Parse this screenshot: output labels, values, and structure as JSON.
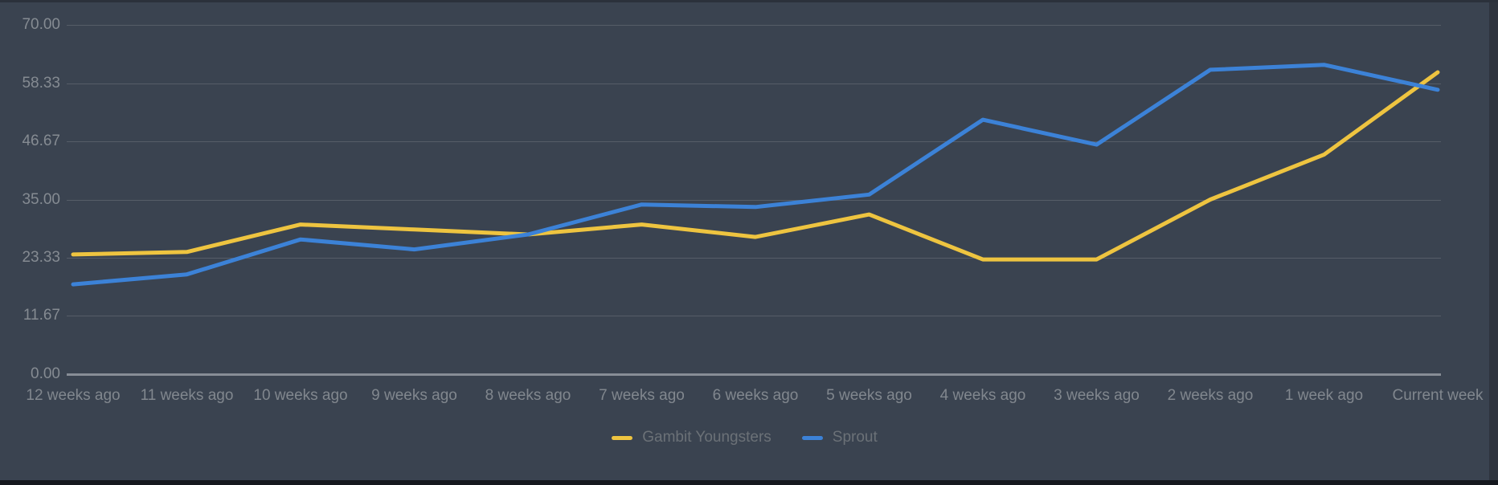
{
  "chart_data": {
    "type": "line",
    "title": "",
    "xlabel": "",
    "ylabel": "",
    "categories": [
      "12 weeks ago",
      "11 weeks ago",
      "10 weeks ago",
      "9 weeks ago",
      "8 weeks ago",
      "7 weeks ago",
      "6 weeks ago",
      "5 weeks ago",
      "4 weeks ago",
      "3 weeks ago",
      "2 weeks ago",
      "1 week ago",
      "Current week"
    ],
    "series": [
      {
        "name": "Gambit Youngsters",
        "color": "#eec440",
        "values": [
          24,
          24.5,
          30,
          29,
          28,
          30,
          27.5,
          32,
          23,
          23,
          35,
          44,
          60.5
        ]
      },
      {
        "name": "Sprout",
        "color": "#3c82d7",
        "values": [
          18,
          20,
          27,
          25,
          28,
          34,
          33.5,
          36,
          51,
          46,
          61,
          62,
          57
        ]
      }
    ],
    "ylim": [
      0,
      70
    ],
    "yticks": [
      0,
      11.67,
      23.33,
      35,
      46.67,
      58.33,
      70
    ],
    "ytick_labels": [
      "0.00",
      "11.67",
      "23.33",
      "35.00",
      "46.67",
      "58.33",
      "70.00"
    ],
    "grid": "horizontal-only",
    "legend_position": "bottom-center"
  },
  "colors": {
    "card_background": "#3a4350",
    "page_background": "#2e343e",
    "bottom_bar": "#15181e",
    "gridline": "#565d68",
    "zero_axis": "#878d96",
    "tick_text": "#858b92",
    "legend_text": "#6b7177",
    "series_yellow": "#eec440",
    "series_blue": "#3c82d7"
  }
}
